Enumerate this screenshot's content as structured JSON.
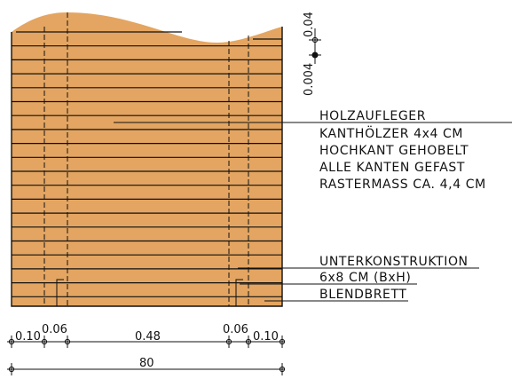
{
  "colors": {
    "wood": "#E3A561",
    "line": "#111111",
    "background": "#FFFFFF"
  },
  "labels": {
    "holzaufleger": "HOLZAUFLEGER",
    "kanthoelzer": "KANTHÖLZER 4x4 CM",
    "hochkant": "HOCHKANT GEHOBELT",
    "kanten": "ALLE KANTEN GEFAST",
    "rastermass": "RASTERMASS CA. 4,4 CM",
    "unterkonstruktion": "UNTERKONSTRUKTION",
    "unterkonstruktion_size": "6x8 CM (BxH)",
    "blendbrett": "BLENDBRETT"
  },
  "dimensions": {
    "top_right_a": "0.04",
    "top_right_b": "0.004",
    "left_1": "0.10",
    "left_2": "0.06",
    "center": "0.48",
    "right_2": "0.06",
    "right_1": "0.10",
    "total": "80"
  }
}
